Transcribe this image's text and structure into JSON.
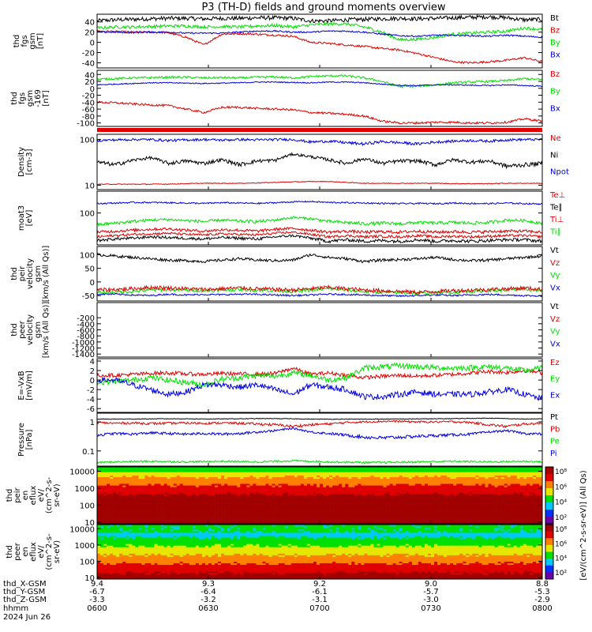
{
  "title": "P3 (TH-D) fields and ground moments overview",
  "colors": {
    "black": "#000000",
    "red": "#e00000",
    "green": "#00e000",
    "blue": "#0000e0"
  },
  "chart_data": [
    {
      "type": "line",
      "id": "fgs_all",
      "ylabel": [
        "thd",
        "fgs",
        "gsm",
        "[nT]"
      ],
      "ylim": [
        -50,
        55
      ],
      "yticks": [
        -40,
        -20,
        0,
        20,
        40
      ],
      "series": [
        {
          "name": "Bt",
          "color": "black",
          "base": [
            42,
            44,
            45,
            46,
            47,
            47,
            46,
            47,
            47,
            48,
            48,
            47,
            42,
            42,
            44,
            45,
            46,
            47,
            46,
            47,
            48,
            49,
            50,
            48,
            44,
            45
          ],
          "noise": 4
        },
        {
          "name": "Bz",
          "color": "red",
          "base": [
            22,
            21,
            20,
            20,
            19,
            10,
            -5,
            16,
            17,
            16,
            14,
            12,
            0,
            -2,
            -5,
            -8,
            -12,
            -15,
            -22,
            -30,
            -38,
            -40,
            -38,
            -35,
            -30,
            -38
          ],
          "noise": 2
        },
        {
          "name": "By",
          "color": "green",
          "base": [
            28,
            30,
            30,
            31,
            32,
            32,
            30,
            31,
            30,
            32,
            33,
            30,
            34,
            36,
            36,
            30,
            20,
            5,
            6,
            10,
            16,
            18,
            20,
            22,
            28,
            25
          ],
          "noise": 3
        },
        {
          "name": "Bx",
          "color": "blue",
          "base": [
            20,
            20,
            19,
            20,
            20,
            18,
            18,
            18,
            20,
            22,
            22,
            20,
            20,
            22,
            22,
            20,
            16,
            13,
            12,
            14,
            14,
            13,
            12,
            14,
            12,
            10
          ],
          "noise": 1.5
        }
      ],
      "legend": [
        "Bt",
        "Bz",
        "By",
        "Bx"
      ]
    },
    {
      "type": "line",
      "id": "fgs_zoom",
      "ylabel": [
        "thd",
        "fgs",
        "gsm",
        "-169",
        "[nT]"
      ],
      "ylim": [
        -110,
        52
      ],
      "yticks": [
        -100,
        -80,
        -60,
        -40,
        -20,
        0,
        20,
        40
      ],
      "series": [
        {
          "name": "By",
          "color": "green",
          "base": [
            26,
            28,
            30,
            31,
            32,
            32,
            30,
            31,
            30,
            32,
            33,
            30,
            34,
            36,
            36,
            30,
            20,
            5,
            6,
            10,
            16,
            18,
            20,
            22,
            28,
            25
          ],
          "noise": 3
        },
        {
          "name": "Bx",
          "color": "blue",
          "base": [
            10,
            12,
            14,
            16,
            16,
            15,
            14,
            15,
            16,
            18,
            18,
            17,
            16,
            18,
            18,
            16,
            12,
            9,
            8,
            10,
            10,
            9,
            8,
            10,
            8,
            6
          ],
          "noise": 1.5
        },
        {
          "name": "Bz",
          "color": "red",
          "base": [
            -40,
            -42,
            -45,
            -48,
            -50,
            -60,
            -70,
            -55,
            -55,
            -58,
            -60,
            -62,
            -70,
            -72,
            -75,
            -80,
            -95,
            -100,
            -100,
            -98,
            -98,
            -100,
            -100,
            -98,
            -88,
            -95
          ],
          "noise": 3
        }
      ],
      "legend": [
        "Bz",
        "By",
        "Bx"
      ]
    },
    {
      "type": "line",
      "id": "density",
      "ylabel": [
        "Density",
        "[cm-3]"
      ],
      "ylog": true,
      "ylim": [
        8,
        130
      ],
      "yticks": [
        10,
        100
      ],
      "series": [
        {
          "name": "Ne",
          "color": "red",
          "base": [
            10.5,
            10.5,
            10.5,
            10.5,
            10.6,
            10.8,
            11,
            11,
            11,
            11.2,
            11.5,
            11.8,
            12,
            12,
            11.5,
            11,
            11,
            11,
            11,
            11,
            10.8,
            10.8,
            10.8,
            11,
            11,
            11
          ],
          "noise": 0.2
        },
        {
          "name": "Ni",
          "color": "black",
          "base": [
            32,
            28,
            35,
            40,
            30,
            34,
            30,
            36,
            28,
            34,
            35,
            48,
            42,
            36,
            30,
            38,
            30,
            34,
            34,
            28,
            36,
            32,
            34,
            26,
            28,
            30
          ],
          "noise": 3
        },
        {
          "name": "Npot",
          "color": "blue",
          "base": [
            95,
            98,
            100,
            100,
            95,
            98,
            100,
            97,
            100,
            98,
            100,
            100,
            88,
            92,
            85,
            80,
            90,
            85,
            80,
            88,
            92,
            95,
            92,
            98,
            100,
            100
          ],
          "noise": 6
        }
      ],
      "legend": [
        "Ne",
        "Ni",
        "Npot"
      ]
    },
    {
      "type": "line",
      "id": "moat",
      "ylabel": [
        "moat3",
        "[eV]"
      ],
      "ylog": true,
      "ylim": [
        20,
        300
      ],
      "yticks": [
        100
      ],
      "series": [
        {
          "name": "Te⊥",
          "color": "red",
          "base": [
            30,
            32,
            34,
            35,
            36,
            34,
            33,
            35,
            34,
            33,
            36,
            38,
            34,
            30,
            32,
            30,
            31,
            30,
            32,
            30,
            31,
            30,
            31,
            32,
            32,
            30
          ],
          "noise": 2
        },
        {
          "name": "Te∥",
          "color": "black",
          "base": [
            25,
            27,
            28,
            30,
            29,
            28,
            27,
            29,
            28,
            27,
            30,
            32,
            28,
            24,
            26,
            24,
            25,
            24,
            26,
            24,
            25,
            24,
            25,
            26,
            26,
            24
          ],
          "noise": 2
        },
        {
          "name": "Ti⊥",
          "color": "red",
          "base": [
            38,
            40,
            42,
            44,
            45,
            42,
            40,
            43,
            42,
            40,
            44,
            46,
            42,
            38,
            40,
            38,
            39,
            38,
            40,
            38,
            39,
            38,
            39,
            40,
            40,
            38
          ],
          "noise": 3
        },
        {
          "name": "Ti∥",
          "color": "green",
          "base": [
            55,
            60,
            65,
            70,
            72,
            68,
            65,
            70,
            66,
            65,
            70,
            80,
            75,
            65,
            62,
            58,
            60,
            58,
            62,
            60,
            62,
            60,
            62,
            70,
            68,
            60
          ],
          "noise": 5
        },
        {
          "name": "Npot",
          "color": "blue",
          "base": [
            160,
            165,
            170,
            170,
            168,
            165,
            162,
            168,
            165,
            162,
            168,
            175,
            178,
            170,
            168,
            165,
            162,
            160,
            162,
            160,
            165,
            162,
            160,
            165,
            160,
            158
          ],
          "noise": 6
        }
      ],
      "legend": [
        "Te⊥",
        "Te∥",
        "Ti⊥",
        "Ti∥"
      ]
    },
    {
      "type": "line",
      "id": "peir",
      "ylabel": [
        "thd",
        "peir",
        "velocity",
        "gsm",
        "[km/s (All Qs)]"
      ],
      "ylim": [
        -70,
        130
      ],
      "yticks": [
        -50,
        0,
        50,
        100
      ],
      "series": [
        {
          "name": "Vt",
          "color": "black",
          "base": [
            100,
            95,
            90,
            85,
            80,
            78,
            75,
            80,
            85,
            80,
            78,
            80,
            100,
            90,
            85,
            75,
            80,
            82,
            85,
            90,
            82,
            78,
            80,
            85,
            90,
            95
          ],
          "noise": 5
        },
        {
          "name": "Vy",
          "color": "green",
          "base": [
            -40,
            -38,
            -35,
            -30,
            -28,
            -30,
            -32,
            -30,
            -28,
            -30,
            -32,
            -35,
            -30,
            -25,
            -30,
            -35,
            -38,
            -40,
            -42,
            -40,
            -38,
            -35,
            -32,
            -30,
            -28,
            -32
          ],
          "noise": 6
        },
        {
          "name": "Vz",
          "color": "red",
          "base": [
            -30,
            -28,
            -25,
            -20,
            -22,
            -25,
            -28,
            -25,
            -22,
            -25,
            -28,
            -30,
            -25,
            -20,
            -25,
            -30,
            -32,
            -35,
            -38,
            -35,
            -32,
            -30,
            -28,
            -25,
            -22,
            -28
          ],
          "noise": 7
        },
        {
          "name": "Vx",
          "color": "blue",
          "base": [
            -45,
            -45,
            -48,
            -50,
            -45,
            -48,
            -46,
            -47,
            -45,
            -46,
            -48,
            -50,
            -48,
            -45,
            -46,
            -48,
            -50,
            -52,
            -50,
            -48,
            -50,
            -48,
            -46,
            -48,
            -50,
            -52
          ],
          "noise": 3
        }
      ],
      "legend": [
        "Vt",
        "Vz",
        "Vy",
        "Vx"
      ]
    },
    {
      "type": "line",
      "id": "peer",
      "ylabel": [
        "thd",
        "peer",
        "velocity",
        "gsm",
        "[km/s (All Qs)]"
      ],
      "ylim": [
        -1500,
        300
      ],
      "yticks": [
        -1400,
        -1200,
        -1000,
        -800,
        -600,
        -400,
        -200
      ],
      "series": [],
      "legend": [
        "Vt",
        "Vz",
        "Vy",
        "Vx"
      ]
    },
    {
      "type": "line",
      "id": "efield",
      "ylabel": [
        "E=-VxB",
        "[mV/m]"
      ],
      "ylim": [
        -6.8,
        4.5
      ],
      "yticks": [
        -6,
        -4,
        -2,
        0,
        2,
        4
      ],
      "series": [
        {
          "name": "Ez",
          "color": "red",
          "base": [
            1,
            1,
            1.2,
            1.4,
            1.5,
            1.3,
            1.2,
            1.4,
            1.3,
            1.2,
            1.4,
            2.5,
            1.2,
            1.5,
            1,
            0.5,
            0.8,
            1,
            0.8,
            1,
            1.2,
            1.5,
            1.8,
            1.6,
            2,
            1.5
          ],
          "noise": 0.4
        },
        {
          "name": "Ey",
          "color": "green",
          "base": [
            -0.5,
            -0.3,
            0,
            0.5,
            0,
            -0.5,
            -1,
            0.2,
            0.5,
            1,
            0.8,
            1.5,
            1,
            0,
            0.5,
            2.5,
            2.8,
            3,
            2.8,
            2.6,
            2.5,
            2.6,
            2.8,
            2.5,
            2,
            2.5
          ],
          "noise": 0.6
        },
        {
          "name": "Ex",
          "color": "blue",
          "base": [
            0,
            0,
            -1,
            -2,
            -3,
            -2.5,
            -1,
            -1,
            -1.5,
            -1,
            -2,
            -3,
            -1,
            -1.5,
            -2,
            -3.5,
            -3.5,
            -3,
            -2.5,
            -3,
            -3,
            -3,
            -2.5,
            -2,
            -3,
            -4
          ],
          "noise": 0.6
        }
      ],
      "legend": [
        "Ez",
        "Ey",
        "Ex"
      ]
    },
    {
      "type": "line",
      "id": "pressure",
      "ylabel": [
        "Pressure",
        "[nPa]"
      ],
      "ylog": true,
      "ylim": [
        0.03,
        2
      ],
      "yticks": [
        0.1,
        1.0
      ],
      "series": [
        {
          "name": "Pt",
          "color": "black",
          "base": [
            1.25,
            1.25,
            1.26,
            1.27,
            1.28,
            1.28,
            1.26,
            1.27,
            1.28,
            1.3,
            1.3,
            1.28,
            1.25,
            1.24,
            1.25,
            1.24,
            1.25,
            1.26,
            1.27,
            1.28,
            1.3,
            1.32,
            1.35,
            1.3,
            1.25,
            1.28
          ],
          "noise": 0.03
        },
        {
          "name": "Pb",
          "color": "red",
          "base": [
            0.95,
            0.9,
            0.92,
            0.88,
            0.9,
            0.92,
            0.9,
            0.92,
            0.9,
            0.85,
            0.8,
            0.7,
            0.8,
            0.85,
            0.95,
            1,
            1.05,
            1.05,
            1,
            1,
            1.02,
            0.95,
            0.8,
            0.7,
            0.85,
            0.9
          ],
          "noise": 0.08
        },
        {
          "name": "Pi",
          "color": "blue",
          "base": [
            0.35,
            0.4,
            0.38,
            0.42,
            0.4,
            0.38,
            0.4,
            0.38,
            0.4,
            0.45,
            0.5,
            0.6,
            0.45,
            0.4,
            0.35,
            0.3,
            0.28,
            0.3,
            0.32,
            0.34,
            0.36,
            0.38,
            0.45,
            0.5,
            0.4,
            0.38
          ],
          "noise": 0.04
        },
        {
          "name": "Pe",
          "color": "green",
          "base": [
            0.04,
            0.042,
            0.043,
            0.044,
            0.043,
            0.042,
            0.043,
            0.044,
            0.043,
            0.042,
            0.044,
            0.046,
            0.044,
            0.042,
            0.041,
            0.04,
            0.04,
            0.041,
            0.042,
            0.043,
            0.044,
            0.043,
            0.042,
            0.043,
            0.044,
            0.042
          ],
          "noise": 0.003
        }
      ],
      "legend": [
        "Pt",
        "Pb",
        "Pe",
        "Pi"
      ]
    },
    {
      "type": "heatmap",
      "id": "peir_eflux",
      "ylabel": [
        "thd",
        "peir",
        "en",
        "eflux",
        "eV/",
        "(cm^2-s-",
        "sr-eV)"
      ],
      "ylog": true,
      "ylim": [
        8,
        18000
      ],
      "yticks": [
        10,
        100,
        1000,
        10000
      ],
      "profile": "ion"
    },
    {
      "type": "heatmap",
      "id": "peer_eflux",
      "ylabel": [
        "thd",
        "peer",
        "en",
        "eflux",
        "eV/",
        "(cm^2-s-",
        "sr-eV)"
      ],
      "ylog": true,
      "ylim": [
        8,
        18000
      ],
      "yticks": [
        10,
        100,
        1000,
        10000
      ],
      "profile": "electron"
    }
  ],
  "colorbar": {
    "ticks": [
      "10²",
      "10⁴",
      "10⁶",
      "10⁸",
      "10²",
      "10⁴",
      "10⁶",
      "10⁸"
    ],
    "label": "[eV/(cm^2-s-sr-eV)] (All Qs)"
  },
  "xaxis": {
    "rows": [
      {
        "label": "thd_X-GSM",
        "values": [
          "9.4",
          "9.3",
          "9.2",
          "9.0",
          "8.8"
        ]
      },
      {
        "label": "thd_Y-GSM",
        "values": [
          "-6.7",
          "-6.4",
          "-6.1",
          "-5.7",
          "-5.3"
        ]
      },
      {
        "label": "thd_Z-GSM",
        "values": [
          "-3.3",
          "-3.2",
          "-3.1",
          "-3.0",
          "-2.9"
        ]
      },
      {
        "label": "hhmm",
        "values": [
          "0600",
          "0630",
          "0700",
          "0730",
          "0800"
        ]
      }
    ],
    "date": "2024 Jun 26"
  }
}
